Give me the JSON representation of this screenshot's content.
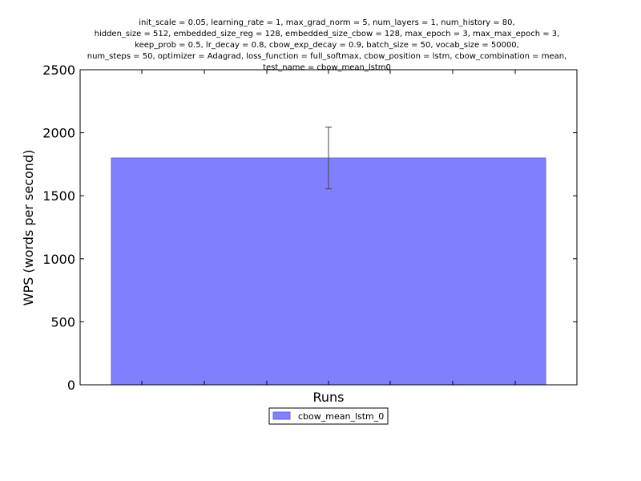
{
  "chart_data": {
    "type": "bar",
    "title_lines": [
      "init_scale = 0.05, learning_rate = 1, max_grad_norm = 5, num_layers = 1, num_history = 80,",
      "hidden_size = 512, embedded_size_reg = 128, embedded_size_cbow = 128, max_epoch = 3, max_max_epoch = 3,",
      "keep_prob = 0.5, lr_decay = 0.8, cbow_exp_decay = 0.9, batch_size = 50, vocab_size = 50000,",
      "num_steps = 50, optimizer = Adagrad, loss_function = full_softmax, cbow_position = lstm, cbow_combination = mean,",
      "test_name = cbow_mean_lstm0"
    ],
    "xlabel": "Runs",
    "ylabel": "WPS (words per second)",
    "ylim": [
      0,
      2500
    ],
    "yticks": [
      0,
      500,
      1000,
      1500,
      2000,
      2500
    ],
    "ytick_labels": [
      "0",
      "500",
      "1000",
      "1500",
      "2000",
      "2500"
    ],
    "series": [
      {
        "name": "cbow_mean_lstm_0",
        "value": 1800,
        "error_low": 1555,
        "error_high": 2045,
        "color": "#8080ff",
        "edge_color": "#6666dd"
      }
    ],
    "legend_position": "below-center",
    "grid": false
  }
}
